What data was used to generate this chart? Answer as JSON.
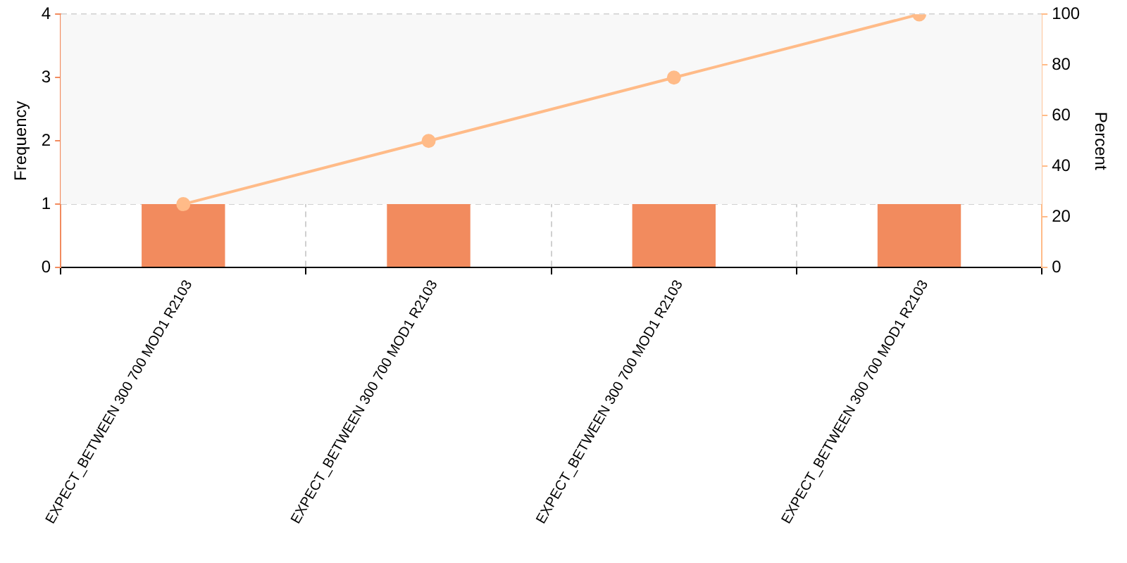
{
  "chart_data": {
    "type": "bar",
    "ylabel": "Frequency",
    "y2label": "Percent",
    "categories": [
      "EXPECT_BETWEEN 300 700 MOD1 R2103",
      "EXPECT_BETWEEN 300 700 MOD1 R2103",
      "EXPECT_BETWEEN 300 700 MOD1 R2103",
      "EXPECT_BETWEEN 300 700 MOD1 R2103"
    ],
    "series": [
      {
        "color": "#f28b5e",
        "values": [
          1,
          1,
          1,
          1
        ]
      },
      {
        "type": "line",
        "axis": "y2",
        "color": "#ffbb88",
        "values": [
          25,
          50,
          75,
          100
        ]
      }
    ],
    "ylim": [
      0,
      4
    ],
    "yticks": [
      0,
      1,
      2,
      3,
      4
    ],
    "y2lim": [
      0,
      100
    ],
    "y2ticks": [
      0,
      20,
      40,
      60,
      80,
      100
    ],
    "bands": [
      {
        "axis": "y",
        "from": 1,
        "to": 4,
        "color": "#f8f8f8"
      }
    ],
    "grid": true,
    "legend": false,
    "marker": "circle",
    "line_style": "solid"
  }
}
